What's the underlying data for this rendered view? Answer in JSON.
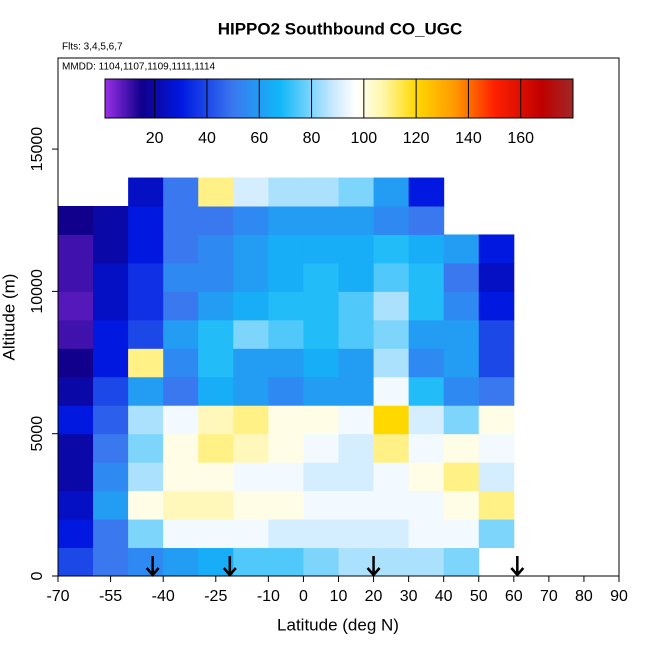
{
  "chart_data": {
    "type": "heatmap",
    "title": "HIPPO2 Southbound CO_UGC",
    "annotations": [
      "Flts: 3,4,5,6,7",
      "MMDD: 1104,1107,1109,1111,1114"
    ],
    "xlabel": "Latitude (deg N)",
    "ylabel": "Altitude (m)",
    "xlim": [
      -70,
      90
    ],
    "xticks": [
      -70,
      -55,
      -40,
      -25,
      -10,
      0,
      10,
      20,
      30,
      40,
      50,
      60,
      70,
      80,
      90
    ],
    "ylim": [
      0,
      18200
    ],
    "yticks": [
      0,
      5000,
      10000,
      15000
    ],
    "lat_bins": [
      -70,
      -60,
      -50,
      -40,
      -30,
      -20,
      -10,
      0,
      10,
      20,
      30,
      40,
      50,
      60
    ],
    "alt_bins": [
      0,
      1000,
      2000,
      3000,
      4000,
      5000,
      6000,
      7000,
      8000,
      9000,
      10000,
      11000,
      12000,
      13000,
      14000
    ],
    "values": [
      [
        40,
        50,
        55,
        60,
        65,
        75,
        75,
        80,
        85,
        85,
        85,
        80,
        null
      ],
      [
        30,
        50,
        80,
        95,
        95,
        95,
        90,
        90,
        90,
        90,
        95,
        95,
        80
      ],
      [
        25,
        60,
        100,
        105,
        105,
        100,
        100,
        95,
        95,
        95,
        95,
        100,
        110
      ],
      [
        20,
        55,
        85,
        100,
        100,
        95,
        95,
        90,
        90,
        95,
        100,
        110,
        90
      ],
      [
        20,
        50,
        80,
        100,
        110,
        105,
        100,
        95,
        90,
        110,
        95,
        100,
        95
      ],
      [
        30,
        45,
        85,
        95,
        105,
        110,
        100,
        100,
        95,
        120,
        90,
        80,
        100
      ],
      [
        20,
        40,
        60,
        50,
        65,
        60,
        55,
        60,
        60,
        95,
        70,
        55,
        50
      ],
      [
        15,
        30,
        110,
        55,
        70,
        60,
        60,
        65,
        60,
        85,
        55,
        60,
        40
      ],
      [
        10,
        30,
        40,
        60,
        70,
        80,
        75,
        70,
        75,
        80,
        60,
        60,
        40
      ],
      [
        8,
        25,
        35,
        50,
        60,
        65,
        70,
        70,
        75,
        85,
        70,
        55,
        30
      ],
      [
        10,
        25,
        35,
        55,
        55,
        60,
        65,
        70,
        65,
        75,
        70,
        50,
        25
      ],
      [
        10,
        20,
        30,
        50,
        55,
        60,
        65,
        65,
        65,
        70,
        65,
        60,
        30
      ],
      [
        15,
        20,
        30,
        50,
        50,
        55,
        60,
        60,
        60,
        55,
        50,
        null,
        null
      ],
      [
        null,
        null,
        25,
        50,
        110,
        90,
        85,
        85,
        80,
        60,
        30,
        null,
        null
      ]
    ],
    "colorbar_lim": [
      1,
      180
    ],
    "colorbar_ticks": [
      20,
      40,
      60,
      80,
      100,
      120,
      140,
      160
    ],
    "colorscale": [
      {
        "value": 1,
        "color": "#9a30e8"
      },
      {
        "value": 15,
        "color": "#10008c"
      },
      {
        "value": 30,
        "color": "#0018e0"
      },
      {
        "value": 50,
        "color": "#3a78f0"
      },
      {
        "value": 68,
        "color": "#10b8f8"
      },
      {
        "value": 88,
        "color": "#c8e8ff"
      },
      {
        "value": 97,
        "color": "#ffffff"
      },
      {
        "value": 108,
        "color": "#fff6a0"
      },
      {
        "value": 120,
        "color": "#ffd800"
      },
      {
        "value": 135,
        "color": "#ff9800"
      },
      {
        "value": 150,
        "color": "#ff2000"
      },
      {
        "value": 168,
        "color": "#c00000"
      },
      {
        "value": 180,
        "color": "#a02828"
      }
    ],
    "arrows": [
      -43,
      -21,
      20,
      61
    ]
  }
}
